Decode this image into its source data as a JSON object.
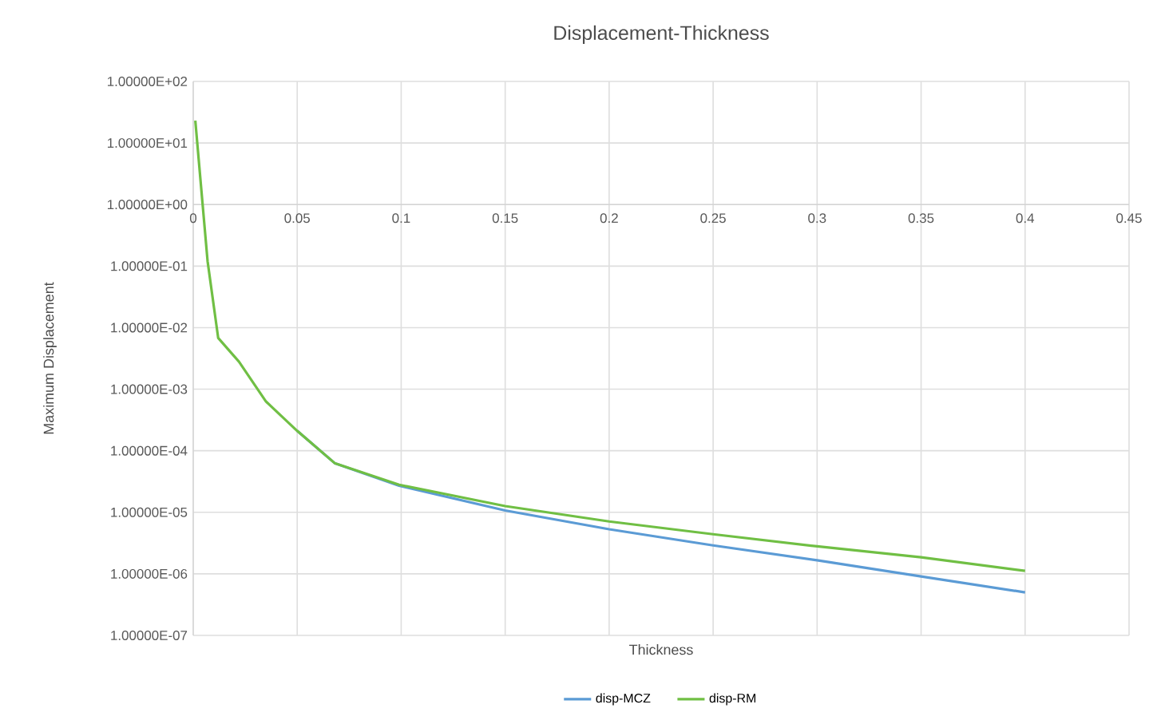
{
  "chart_data": {
    "type": "line",
    "title": "Displacement-Thickness",
    "xlabel": "Thickness",
    "ylabel": "Maximum Displacement",
    "series": [
      {
        "name": "disp-MCZ",
        "color": "#5b9bd5",
        "x": [
          0.05,
          0.068,
          0.099,
          0.15,
          0.2,
          0.25,
          0.3,
          0.35,
          0.4
        ],
        "values": [
          0.00021,
          6.3e-05,
          2.7e-05,
          1.07e-05,
          5.3e-06,
          2.9e-06,
          1.66e-06,
          9.1e-07,
          5e-07
        ]
      },
      {
        "name": "disp-RM",
        "color": "#70bf44",
        "x": [
          0.001,
          0.0069,
          0.012,
          0.022,
          0.035,
          0.05,
          0.068,
          0.099,
          0.15,
          0.2,
          0.25,
          0.3,
          0.35,
          0.4
        ],
        "values": [
          23,
          0.12,
          0.0068,
          0.0028,
          0.00063,
          0.00021,
          6.3e-05,
          2.8e-05,
          1.26e-05,
          7.1e-06,
          4.4e-06,
          2.8e-06,
          1.86e-06,
          1.12e-06
        ]
      }
    ],
    "xlim": [
      0,
      0.45
    ],
    "xticks": [
      0,
      0.05,
      0.1,
      0.15,
      0.2,
      0.25,
      0.3,
      0.35,
      0.4,
      0.45
    ],
    "ylim": [
      1e-07,
      100
    ],
    "log": "y",
    "yticks": [
      {
        "value": 100,
        "label": "1.00000E+02"
      },
      {
        "value": 10,
        "label": "1.00000E+01"
      },
      {
        "value": 1,
        "label": "1.00000E+00"
      },
      {
        "value": 0.1,
        "label": "1.00000E-01"
      },
      {
        "value": 0.01,
        "label": "1.00000E-02"
      },
      {
        "value": 0.001,
        "label": "1.00000E-03"
      },
      {
        "value": 0.0001,
        "label": "1.00000E-04"
      },
      {
        "value": 1e-05,
        "label": "1.00000E-05"
      },
      {
        "value": 1e-06,
        "label": "1.00000E-06"
      },
      {
        "value": 1e-07,
        "label": "1.00000E-07"
      }
    ],
    "grid": true,
    "legend": "bottom",
    "marker": "none",
    "line_style": "solid"
  }
}
